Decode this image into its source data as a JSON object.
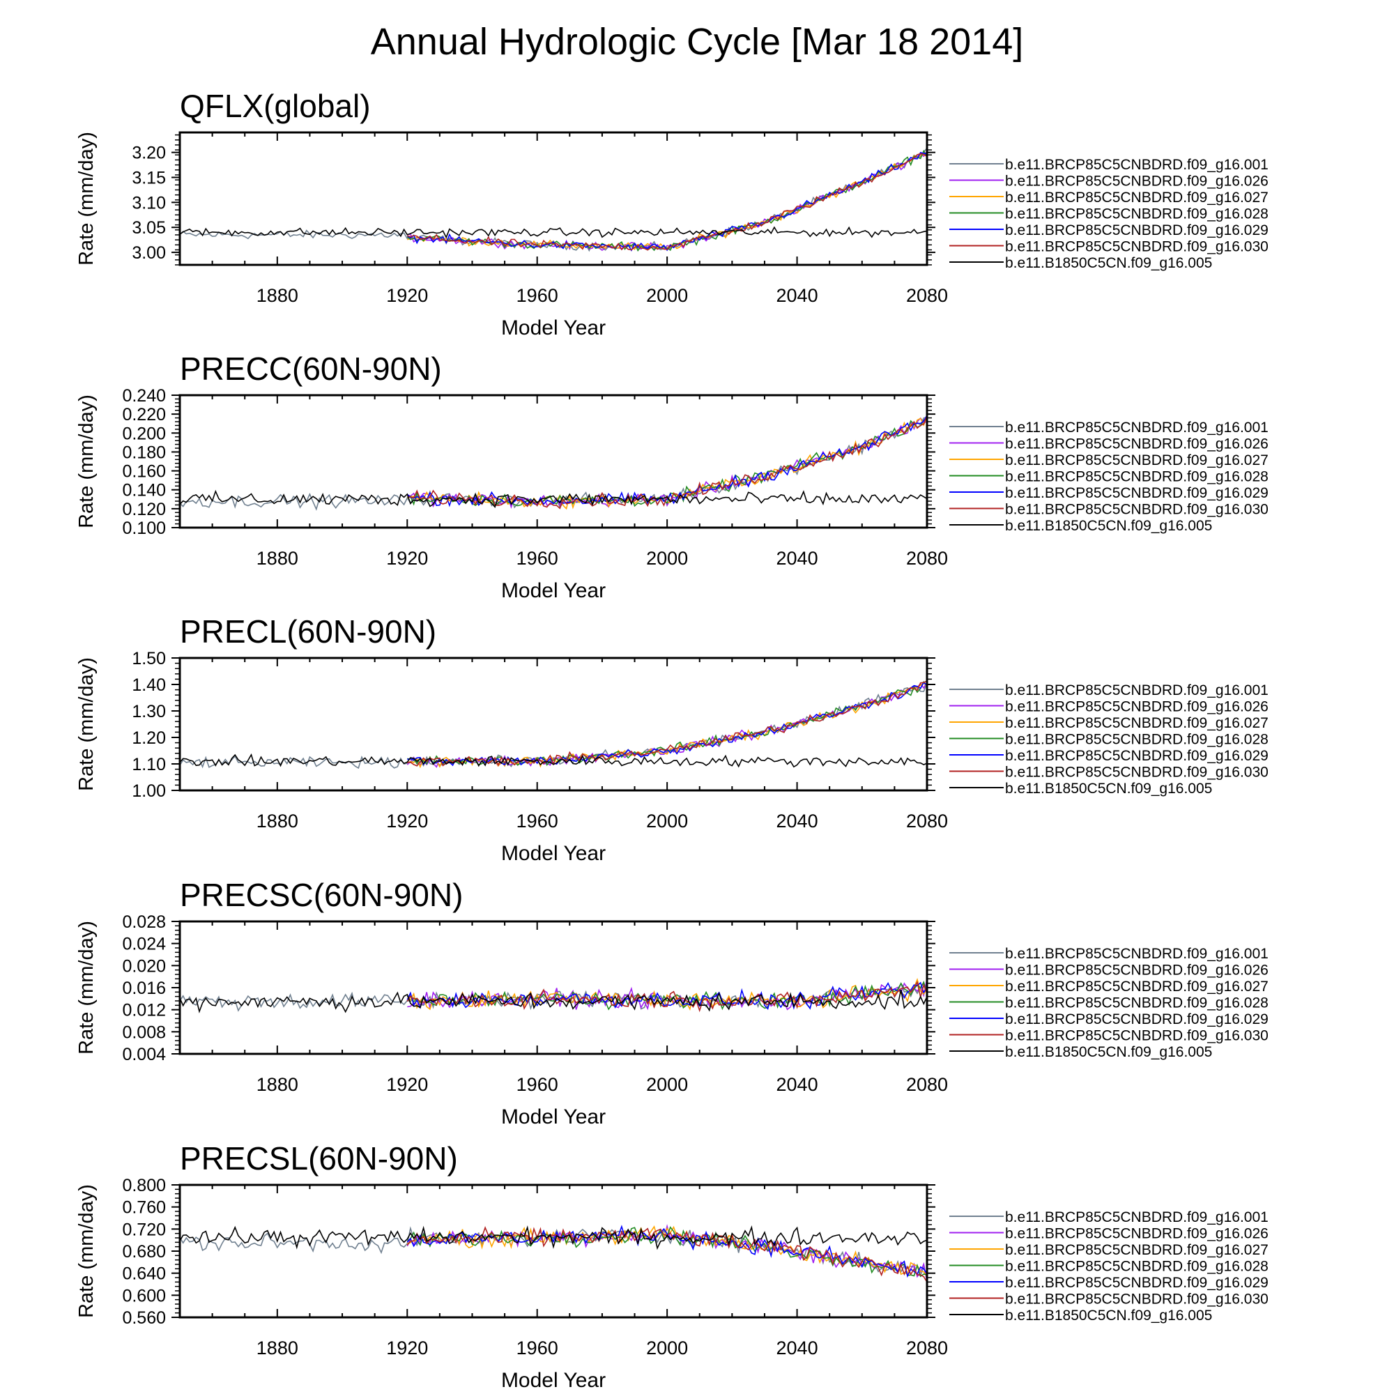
{
  "page_title": "Annual Hydrologic Cycle [Mar 18 2014]",
  "colors": {
    "series": [
      "#708090",
      "#a020f0",
      "#ffa500",
      "#228b22",
      "#0000ff",
      "#b22222",
      "#000000"
    ],
    "axis": "#000000"
  },
  "legend_labels": [
    "b.e11.BRCP85C5CNBDRD.f09_g16.001",
    "b.e11.BRCP85C5CNBDRD.f09_g16.026",
    "b.e11.BRCP85C5CNBDRD.f09_g16.027",
    "b.e11.BRCP85C5CNBDRD.f09_g16.028",
    "b.e11.BRCP85C5CNBDRD.f09_g16.029",
    "b.e11.BRCP85C5CNBDRD.f09_g16.030",
    "b.e11.B1850C5CN.f09_g16.005"
  ],
  "chart_data": [
    {
      "type": "line",
      "title": "QFLX(global)",
      "xlabel": "Model Year",
      "ylabel": "Rate (mm/day)",
      "xlim": [
        1850,
        2080
      ],
      "ylim": [
        2.975,
        3.24
      ],
      "xticks": [
        "1880",
        "1920",
        "1960",
        "2000",
        "2040",
        "2080"
      ],
      "yticks": [
        "3.00",
        "3.05",
        "3.10",
        "3.15",
        "3.20"
      ],
      "legend": "right",
      "series_trend": {
        "historical_years": [
          1850,
          1920
        ],
        "historical_level": 3.035,
        "scenario_years": [
          1920,
          2080
        ],
        "scenario_keypoints": [
          [
            1920,
            3.03
          ],
          [
            1960,
            3.015
          ],
          [
            2000,
            3.01
          ],
          [
            2030,
            3.06
          ],
          [
            2060,
            3.14
          ],
          [
            2080,
            3.2
          ]
        ],
        "control_years": [
          1850,
          2080
        ],
        "control_level": 3.04
      },
      "noise": 0.012
    },
    {
      "type": "line",
      "title": "PRECC(60N-90N)",
      "xlabel": "Model Year",
      "ylabel": "Rate (mm/day)",
      "xlim": [
        1850,
        2080
      ],
      "ylim": [
        0.1,
        0.24
      ],
      "xticks": [
        "1880",
        "1920",
        "1960",
        "2000",
        "2040",
        "2080"
      ],
      "yticks": [
        "0.100",
        "0.120",
        "0.140",
        "0.160",
        "0.180",
        "0.200",
        "0.220",
        "0.240"
      ],
      "legend": "right",
      "series_trend": {
        "historical_years": [
          1850,
          1920
        ],
        "historical_level": 0.128,
        "scenario_years": [
          1920,
          2080
        ],
        "scenario_keypoints": [
          [
            1920,
            0.132
          ],
          [
            1960,
            0.128
          ],
          [
            2000,
            0.13
          ],
          [
            2030,
            0.155
          ],
          [
            2060,
            0.185
          ],
          [
            2080,
            0.215
          ]
        ],
        "control_years": [
          1850,
          2080
        ],
        "control_level": 0.13
      },
      "noise": 0.01
    },
    {
      "type": "line",
      "title": "PRECL(60N-90N)",
      "xlabel": "Model Year",
      "ylabel": "Rate (mm/day)",
      "xlim": [
        1850,
        2080
      ],
      "ylim": [
        1.0,
        1.5
      ],
      "xticks": [
        "1880",
        "1920",
        "1960",
        "2000",
        "2040",
        "2080"
      ],
      "yticks": [
        "1.00",
        "1.10",
        "1.20",
        "1.30",
        "1.40",
        "1.50"
      ],
      "legend": "right",
      "series_trend": {
        "historical_years": [
          1850,
          1920
        ],
        "historical_level": 1.105,
        "scenario_years": [
          1920,
          2080
        ],
        "scenario_keypoints": [
          [
            1920,
            1.11
          ],
          [
            1960,
            1.11
          ],
          [
            2000,
            1.15
          ],
          [
            2030,
            1.22
          ],
          [
            2060,
            1.32
          ],
          [
            2080,
            1.4
          ]
        ],
        "control_years": [
          1850,
          2080
        ],
        "control_level": 1.11
      },
      "noise": 0.028
    },
    {
      "type": "line",
      "title": "PRECSC(60N-90N)",
      "xlabel": "Model Year",
      "ylabel": "Rate (mm/day)",
      "xlim": [
        1850,
        2080
      ],
      "ylim": [
        0.004,
        0.028
      ],
      "xticks": [
        "1880",
        "1920",
        "1960",
        "2000",
        "2040",
        "2080"
      ],
      "yticks": [
        "0.004",
        "0.008",
        "0.012",
        "0.016",
        "0.020",
        "0.024",
        "0.028"
      ],
      "legend": "right",
      "series_trend": {
        "historical_years": [
          1850,
          1920
        ],
        "historical_level": 0.0135,
        "scenario_years": [
          1920,
          2080
        ],
        "scenario_keypoints": [
          [
            1920,
            0.0135
          ],
          [
            1960,
            0.014
          ],
          [
            2000,
            0.0138
          ],
          [
            2040,
            0.0135
          ],
          [
            2080,
            0.016
          ]
        ],
        "control_years": [
          1850,
          2080
        ],
        "control_level": 0.0135
      },
      "noise": 0.0022
    },
    {
      "type": "line",
      "title": "PRECSL(60N-90N)",
      "xlabel": "Model Year",
      "ylabel": "Rate (mm/day)",
      "xlim": [
        1850,
        2080
      ],
      "ylim": [
        0.56,
        0.8
      ],
      "xticks": [
        "1880",
        "1920",
        "1960",
        "2000",
        "2040",
        "2080"
      ],
      "yticks": [
        "0.560",
        "0.600",
        "0.640",
        "0.680",
        "0.720",
        "0.760",
        "0.800"
      ],
      "legend": "right",
      "series_trend": {
        "historical_years": [
          1850,
          1920
        ],
        "historical_level": 0.695,
        "scenario_years": [
          1920,
          2080
        ],
        "scenario_keypoints": [
          [
            1920,
            0.7
          ],
          [
            1960,
            0.705
          ],
          [
            2000,
            0.71
          ],
          [
            2040,
            0.68
          ],
          [
            2080,
            0.64
          ]
        ],
        "control_years": [
          1850,
          2080
        ],
        "control_level": 0.705
      },
      "noise": 0.022
    }
  ]
}
